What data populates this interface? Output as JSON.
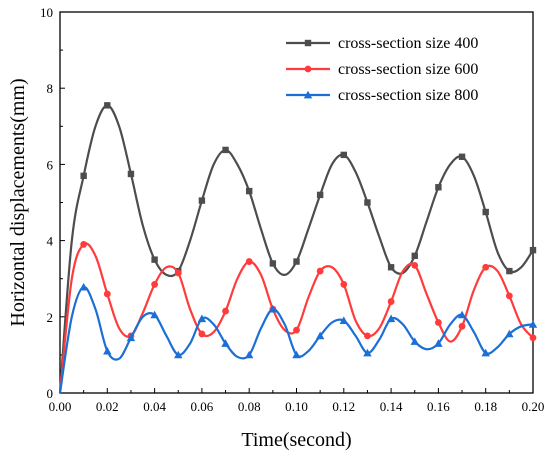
{
  "chart_data": {
    "type": "line",
    "xlabel": "Time(second)",
    "ylabel": "Horizontal displacements(mm)",
    "xlim": [
      0,
      0.2
    ],
    "ylim": [
      0,
      10
    ],
    "xticks": [
      "0.00",
      "0.02",
      "0.04",
      "0.06",
      "0.08",
      "0.10",
      "0.12",
      "0.14",
      "0.16",
      "0.18",
      "0.20"
    ],
    "yticks": [
      "0",
      "2",
      "4",
      "6",
      "8",
      "10"
    ],
    "grid": false,
    "legend_position": "top-right",
    "series": [
      {
        "name": "cross-section size 400",
        "color": "#4d4d4d",
        "marker": "square",
        "x": [
          0,
          0.005,
          0.01,
          0.015,
          0.02,
          0.025,
          0.03,
          0.035,
          0.04,
          0.045,
          0.05,
          0.055,
          0.06,
          0.065,
          0.07,
          0.075,
          0.08,
          0.085,
          0.09,
          0.095,
          0.1,
          0.105,
          0.11,
          0.115,
          0.12,
          0.125,
          0.13,
          0.135,
          0.14,
          0.145,
          0.15,
          0.155,
          0.16,
          0.165,
          0.17,
          0.175,
          0.18,
          0.185,
          0.19,
          0.195,
          0.2
        ],
        "values": [
          0,
          4.0,
          5.7,
          7.0,
          7.55,
          7.0,
          5.75,
          4.4,
          3.5,
          3.1,
          3.2,
          4.0,
          5.05,
          6.0,
          6.38,
          6.0,
          5.3,
          4.3,
          3.4,
          3.1,
          3.45,
          4.3,
          5.2,
          6.0,
          6.25,
          5.8,
          5.0,
          4.1,
          3.3,
          3.15,
          3.6,
          4.5,
          5.4,
          6.0,
          6.2,
          5.7,
          4.75,
          3.7,
          3.2,
          3.3,
          3.75
        ],
        "marker_x": [
          0.01,
          0.02,
          0.03,
          0.04,
          0.05,
          0.06,
          0.07,
          0.08,
          0.09,
          0.1,
          0.11,
          0.12,
          0.13,
          0.14,
          0.15,
          0.16,
          0.17,
          0.18,
          0.19,
          0.2
        ],
        "marker_values": [
          5.7,
          7.55,
          5.75,
          3.5,
          3.2,
          5.05,
          6.38,
          5.3,
          3.4,
          3.45,
          5.2,
          6.25,
          5.0,
          3.3,
          3.6,
          5.4,
          6.2,
          4.75,
          3.2,
          3.75
        ]
      },
      {
        "name": "cross-section size 600",
        "color": "#ff3b3b",
        "marker": "circle",
        "x": [
          0,
          0.005,
          0.01,
          0.015,
          0.02,
          0.025,
          0.03,
          0.035,
          0.04,
          0.045,
          0.05,
          0.055,
          0.06,
          0.065,
          0.07,
          0.075,
          0.08,
          0.085,
          0.09,
          0.095,
          0.1,
          0.105,
          0.11,
          0.115,
          0.12,
          0.125,
          0.13,
          0.135,
          0.14,
          0.145,
          0.15,
          0.155,
          0.16,
          0.165,
          0.17,
          0.175,
          0.18,
          0.185,
          0.19,
          0.195,
          0.2
        ],
        "values": [
          0,
          3.0,
          3.9,
          3.6,
          2.6,
          1.7,
          1.5,
          2.1,
          2.85,
          3.3,
          3.15,
          2.2,
          1.55,
          1.6,
          2.15,
          3.0,
          3.45,
          3.1,
          2.2,
          1.65,
          1.65,
          2.5,
          3.2,
          3.3,
          2.85,
          1.9,
          1.5,
          1.7,
          2.4,
          3.2,
          3.35,
          2.6,
          1.85,
          1.35,
          1.75,
          2.7,
          3.3,
          3.2,
          2.55,
          1.8,
          1.45
        ],
        "marker_x": [
          0.01,
          0.02,
          0.03,
          0.04,
          0.05,
          0.06,
          0.07,
          0.08,
          0.09,
          0.1,
          0.11,
          0.12,
          0.13,
          0.14,
          0.15,
          0.16,
          0.17,
          0.18,
          0.19,
          0.2
        ],
        "marker_values": [
          3.9,
          2.6,
          1.5,
          2.85,
          3.15,
          1.55,
          2.15,
          3.45,
          2.2,
          1.65,
          3.2,
          2.85,
          1.5,
          2.4,
          3.35,
          1.85,
          1.75,
          3.3,
          2.55,
          1.45
        ]
      },
      {
        "name": "cross-section size 800",
        "color": "#1b6fd6",
        "marker": "triangle",
        "x": [
          0,
          0.005,
          0.01,
          0.015,
          0.02,
          0.025,
          0.03,
          0.035,
          0.04,
          0.045,
          0.05,
          0.055,
          0.06,
          0.065,
          0.07,
          0.075,
          0.08,
          0.085,
          0.09,
          0.095,
          0.1,
          0.105,
          0.11,
          0.115,
          0.12,
          0.125,
          0.13,
          0.135,
          0.14,
          0.145,
          0.15,
          0.155,
          0.16,
          0.165,
          0.17,
          0.175,
          0.18,
          0.185,
          0.19,
          0.195,
          0.2
        ],
        "values": [
          0,
          2.0,
          2.78,
          2.2,
          1.1,
          0.9,
          1.45,
          2.0,
          2.05,
          1.5,
          1.0,
          1.3,
          1.95,
          1.8,
          1.3,
          0.95,
          1.0,
          1.7,
          2.2,
          1.8,
          1.0,
          1.1,
          1.5,
          1.85,
          1.9,
          1.5,
          1.05,
          1.4,
          1.95,
          1.8,
          1.35,
          1.15,
          1.3,
          1.8,
          2.05,
          1.6,
          1.05,
          1.2,
          1.55,
          1.75,
          1.8
        ],
        "marker_x": [
          0.01,
          0.02,
          0.03,
          0.04,
          0.05,
          0.06,
          0.07,
          0.08,
          0.09,
          0.1,
          0.11,
          0.12,
          0.13,
          0.14,
          0.15,
          0.16,
          0.17,
          0.18,
          0.19,
          0.2
        ],
        "marker_values": [
          2.78,
          1.1,
          1.45,
          2.05,
          1.0,
          1.95,
          1.3,
          1.0,
          2.2,
          1.0,
          1.5,
          1.9,
          1.05,
          1.95,
          1.35,
          1.3,
          2.05,
          1.05,
          1.55,
          1.8
        ]
      }
    ]
  }
}
